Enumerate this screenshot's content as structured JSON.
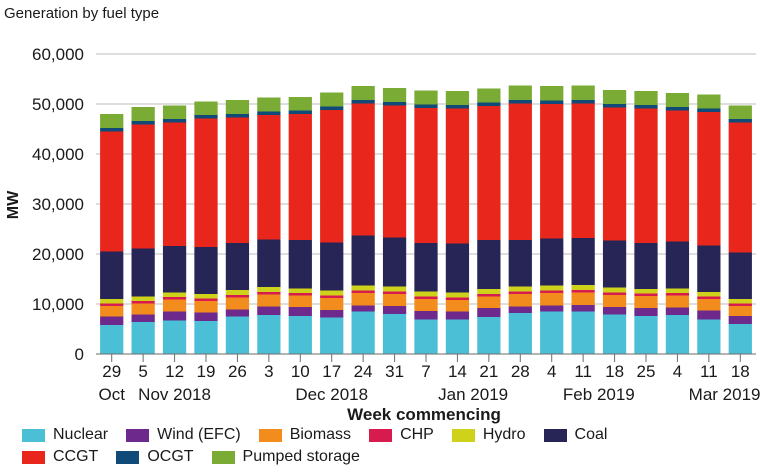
{
  "chart_data": {
    "type": "bar",
    "stacked": true,
    "title": "Generation by fuel type",
    "xlabel": "Week commencing",
    "ylabel": "MW",
    "ylim": [
      0,
      60000
    ],
    "yticks": [
      0,
      10000,
      20000,
      30000,
      40000,
      50000,
      60000
    ],
    "ytick_labels": [
      "0",
      "10,000",
      "20,000",
      "30,000",
      "40,000",
      "50,000",
      "60,000"
    ],
    "categories": [
      "29",
      "5",
      "12",
      "19",
      "26",
      "3",
      "10",
      "17",
      "24",
      "31",
      "7",
      "14",
      "21",
      "28",
      "4",
      "11",
      "18",
      "25",
      "4",
      "11",
      "18"
    ],
    "month_labels": [
      {
        "label": "Oct",
        "index": 0
      },
      {
        "label": "Nov 2018",
        "index": 2
      },
      {
        "label": "Dec 2018",
        "index": 7
      },
      {
        "label": "Jan 2019",
        "index": 11.5
      },
      {
        "label": "Feb 2019",
        "index": 15.5
      },
      {
        "label": "Mar 2019",
        "index": 19.5
      }
    ],
    "grid": "horizontal",
    "legend_position": "bottom",
    "series": [
      {
        "name": "Nuclear",
        "color": "#4bbfd6",
        "values": [
          5800,
          6400,
          6700,
          6600,
          7500,
          7800,
          7600,
          7300,
          8500,
          8000,
          6900,
          6900,
          7400,
          8200,
          8500,
          8500,
          7900,
          7600,
          7800,
          6900,
          6000
        ]
      },
      {
        "name": "Wind (EFC)",
        "color": "#6d2a8c",
        "values": [
          1700,
          1500,
          1800,
          1700,
          1400,
          1700,
          1800,
          1500,
          1200,
          1600,
          1700,
          1600,
          1800,
          1300,
          1200,
          1300,
          1500,
          1600,
          1500,
          1800,
          1600
        ]
      },
      {
        "name": "Biomass",
        "color": "#f28c1c",
        "values": [
          2100,
          2200,
          2400,
          2300,
          2400,
          2400,
          2300,
          2400,
          2500,
          2400,
          2400,
          2300,
          2300,
          2500,
          2500,
          2500,
          2400,
          2400,
          2400,
          2300,
          2000
        ]
      },
      {
        "name": "CHP",
        "color": "#d81b4f",
        "values": [
          500,
          500,
          500,
          500,
          500,
          500,
          500,
          500,
          500,
          500,
          500,
          500,
          500,
          500,
          500,
          500,
          500,
          500,
          500,
          500,
          500
        ]
      },
      {
        "name": "Hydro",
        "color": "#cfd21a",
        "values": [
          900,
          900,
          900,
          900,
          1000,
          1000,
          900,
          1000,
          1000,
          1000,
          1000,
          1000,
          1000,
          1000,
          1000,
          1000,
          1000,
          900,
          900,
          900,
          900
        ]
      },
      {
        "name": "Coal",
        "color": "#272556",
        "values": [
          9500,
          9600,
          9300,
          9400,
          9400,
          9500,
          9700,
          9600,
          10000,
          9800,
          9700,
          9800,
          9800,
          9300,
          9400,
          9400,
          9400,
          9200,
          9400,
          9300,
          9300
        ]
      },
      {
        "name": "CCGT",
        "color": "#e8261c",
        "values": [
          24000,
          24800,
          24700,
          25700,
          25100,
          24900,
          25200,
          26500,
          26400,
          26400,
          27000,
          27000,
          26800,
          27300,
          26900,
          26900,
          26600,
          26900,
          26200,
          26700,
          26000
        ]
      },
      {
        "name": "OCGT",
        "color": "#0f4a78",
        "values": [
          700,
          700,
          700,
          700,
          700,
          700,
          700,
          700,
          700,
          700,
          700,
          700,
          700,
          700,
          700,
          700,
          700,
          700,
          700,
          700,
          700
        ]
      },
      {
        "name": "Pumped storage",
        "color": "#7aab35",
        "values": [
          2800,
          2800,
          2700,
          2700,
          2800,
          2800,
          2700,
          2800,
          2800,
          2800,
          2800,
          2800,
          2800,
          2900,
          2900,
          2900,
          2800,
          2800,
          2800,
          2800,
          2700
        ]
      }
    ]
  }
}
